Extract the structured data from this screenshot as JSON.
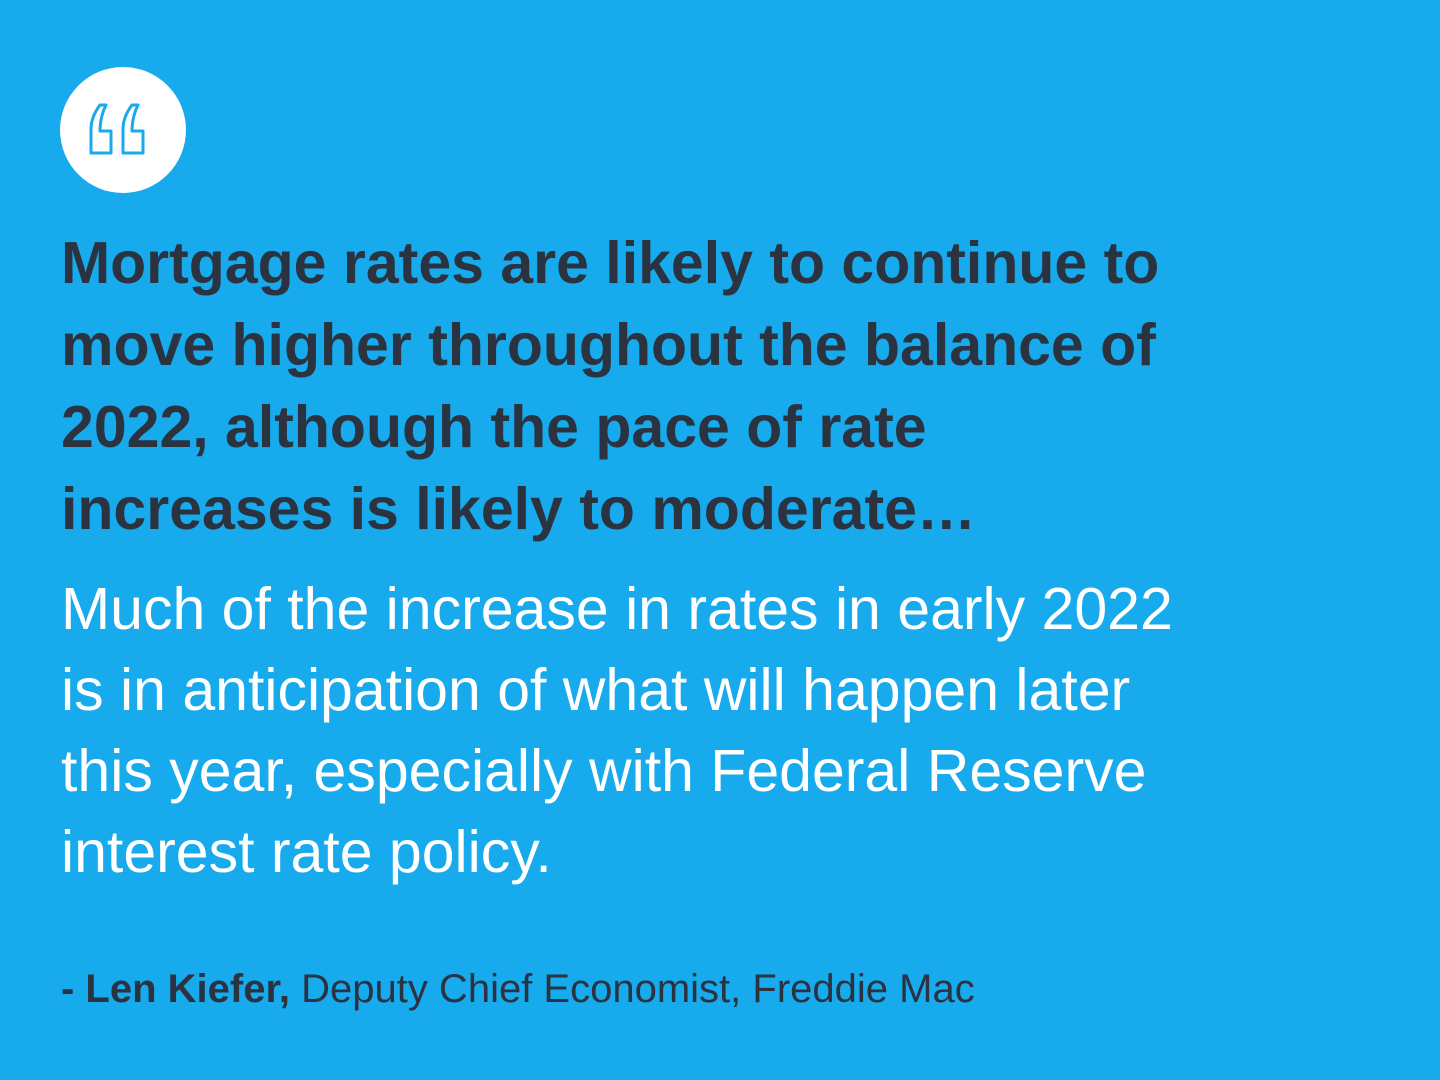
{
  "quote": {
    "lead_lines": [
      "Mortgage rates are likely to continue to",
      "move higher throughout the balance of",
      "2022, although the pace of rate",
      "increases is likely to moderate…"
    ],
    "body_lines": [
      "Much of the increase in rates in early 2022",
      "is in anticipation of what will happen later",
      "this year, especially with Federal Reserve",
      "interest rate policy."
    ]
  },
  "attribution": {
    "name": "- Len Kiefer,",
    "role": "Deputy Chief Economist, Freddie Mac"
  }
}
